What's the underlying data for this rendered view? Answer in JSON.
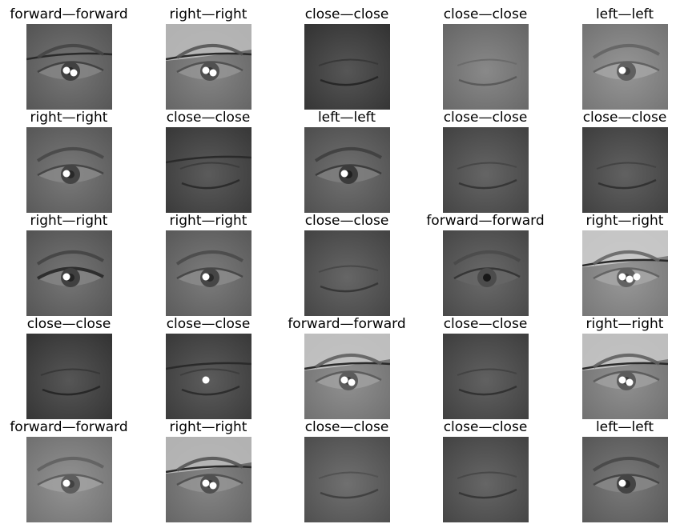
{
  "figure": {
    "panels": [
      {
        "title": "forward—forward",
        "tone": "#6b6b6b",
        "state": "open-glasses",
        "glare": 2
      },
      {
        "title": "right—right",
        "tone": "#7a7a7a",
        "state": "open-glasses-bright",
        "glare": 2
      },
      {
        "title": "close—close",
        "tone": "#4a4a4a",
        "state": "closed",
        "glare": 0
      },
      {
        "title": "close—close",
        "tone": "#7d7d7d",
        "state": "closed",
        "glare": 0
      },
      {
        "title": "left—left",
        "tone": "#8a8a8a",
        "state": "open-clear",
        "glare": 1
      },
      {
        "title": "right—right",
        "tone": "#6e6e6e",
        "state": "open",
        "glare": 1
      },
      {
        "title": "close—close",
        "tone": "#4f4f4f",
        "state": "closed-glasses",
        "glare": 0
      },
      {
        "title": "left—left",
        "tone": "#656565",
        "state": "open",
        "glare": 1
      },
      {
        "title": "close—close",
        "tone": "#595959",
        "state": "closed",
        "glare": 0
      },
      {
        "title": "close—close",
        "tone": "#555555",
        "state": "closed",
        "glare": 0
      },
      {
        "title": "right—right",
        "tone": "#6a6a6a",
        "state": "open-dark",
        "glare": 1
      },
      {
        "title": "right—right",
        "tone": "#707070",
        "state": "open",
        "glare": 1
      },
      {
        "title": "close—close",
        "tone": "#5a5a5a",
        "state": "closed",
        "glare": 0
      },
      {
        "title": "forward—forward",
        "tone": "#5e5e5e",
        "state": "open-faint",
        "glare": 0
      },
      {
        "title": "right—right",
        "tone": "#8c8c8c",
        "state": "open-glasses-bright",
        "glare": 3
      },
      {
        "title": "close—close",
        "tone": "#4a4a4a",
        "state": "closed",
        "glare": 0
      },
      {
        "title": "close—close",
        "tone": "#505050",
        "state": "closed-glasses",
        "glare": 1
      },
      {
        "title": "forward—forward",
        "tone": "#858585",
        "state": "open-glasses-bright",
        "glare": 2
      },
      {
        "title": "close—close",
        "tone": "#555555",
        "state": "closed",
        "glare": 0
      },
      {
        "title": "right—right",
        "tone": "#858585",
        "state": "open-glasses-bright",
        "glare": 2
      },
      {
        "title": "forward—forward",
        "tone": "#878787",
        "state": "open",
        "glare": 1
      },
      {
        "title": "right—right",
        "tone": "#7a7a7a",
        "state": "open-glasses-bright",
        "glare": 2
      },
      {
        "title": "close—close",
        "tone": "#646464",
        "state": "closed",
        "glare": 0
      },
      {
        "title": "close—close",
        "tone": "#5a5a5a",
        "state": "closed",
        "glare": 0
      },
      {
        "title": "left—left",
        "tone": "#6e6e6e",
        "state": "open-clear",
        "glare": 1
      }
    ]
  }
}
